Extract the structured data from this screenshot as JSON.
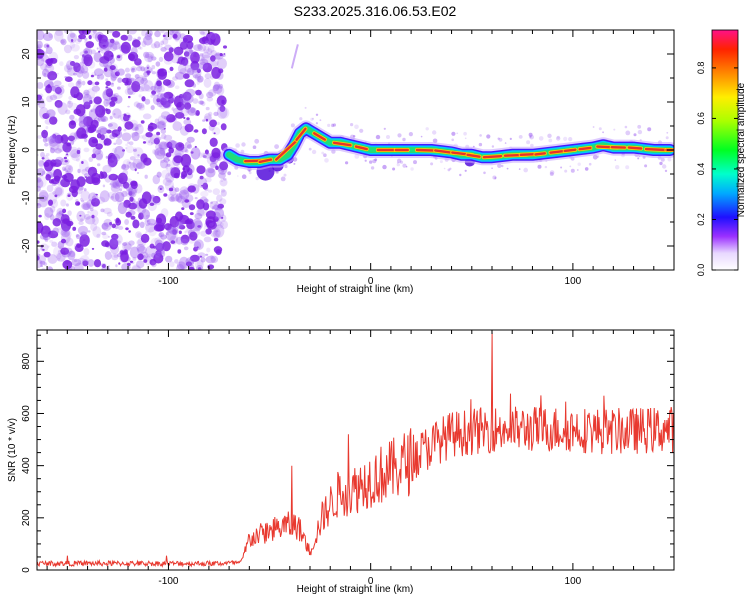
{
  "title": "S233.2025.316.06.53.E02",
  "colors": {
    "snr_line": "#e8392f",
    "ridge_core": "#e8322a",
    "ridge_mid": "#22dd77",
    "ridge_edge": "#00c8ff",
    "noise": "#9b5cf0",
    "noise_dark": "#7a1fe0"
  },
  "chart_data": [
    {
      "type": "heatmap",
      "name": "spectrogram",
      "xlabel": "Height of straight line (km)",
      "ylabel": "Frequency (Hz)",
      "xlim": [
        -165,
        150
      ],
      "ylim": [
        -25,
        25
      ],
      "xticks": [
        -100,
        0,
        100
      ],
      "yticks": [
        -20,
        -10,
        0,
        10,
        20
      ],
      "noise_region": [
        -165,
        -72
      ],
      "ridge": {
        "x": [
          -70,
          -66,
          -60,
          -55,
          -50,
          -45,
          -41,
          -38,
          -35,
          -32,
          -28,
          -24,
          -20,
          -15,
          -10,
          -5,
          0,
          10,
          20,
          30,
          40,
          45,
          50,
          55,
          60,
          70,
          80,
          90,
          100,
          110,
          115,
          120,
          130,
          140,
          148
        ],
        "y": [
          -1,
          -2,
          -2.5,
          -2.5,
          -2,
          -2,
          -1,
          1,
          3.5,
          4.5,
          3.5,
          2.5,
          1.5,
          1.5,
          1,
          0.5,
          0,
          0,
          0,
          0,
          -0.5,
          -1,
          -1,
          -1.5,
          -1.5,
          -1,
          -1,
          -0.5,
          0,
          0.5,
          1,
          0.5,
          0.5,
          0,
          0
        ]
      },
      "colorbar": {
        "label": "Normalized spectral amplitude",
        "range": [
          0,
          0.95
        ],
        "ticks": [
          0.0,
          0.2,
          0.4,
          0.6,
          0.8
        ]
      }
    },
    {
      "type": "line",
      "name": "snr",
      "xlabel": "Height of straight line (km)",
      "ylabel": "SNR (10 * v/v)",
      "xlim": [
        -165,
        150
      ],
      "ylim": [
        0,
        920
      ],
      "xticks": [
        -100,
        0,
        100
      ],
      "yticks": [
        0,
        200,
        400,
        600,
        800
      ],
      "trend": {
        "x": [
          -165,
          -130,
          -100,
          -75,
          -64,
          -60,
          -50,
          -42,
          -36,
          -30,
          -24,
          -20,
          -15,
          -10,
          0,
          10,
          20,
          30,
          40,
          60,
          80,
          100,
          120,
          150
        ],
        "y": [
          25,
          25,
          25,
          25,
          28,
          120,
          150,
          170,
          170,
          70,
          200,
          250,
          300,
          300,
          350,
          380,
          420,
          480,
          520,
          540,
          540,
          540,
          530,
          540
        ]
      },
      "noise_amplitude": [
        10,
        90
      ],
      "peaks": [
        {
          "x": 60,
          "y": 910
        },
        {
          "x": -11,
          "y": 520
        },
        {
          "x": -39,
          "y": 400
        }
      ]
    }
  ]
}
